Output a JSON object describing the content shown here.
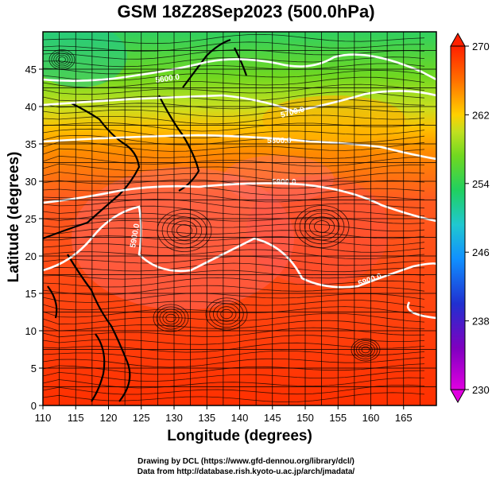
{
  "title": "GSM 18Z28Sep2023 (500.0hPa)",
  "axes": {
    "xlabel": "Longitude (degrees)",
    "ylabel": "Latitude  (degrees)",
    "xlim": [
      110,
      170
    ],
    "ylim": [
      0,
      50
    ],
    "xticks": [
      "110",
      "115",
      "120",
      "125",
      "130",
      "135",
      "140",
      "145",
      "150",
      "155",
      "160",
      "165"
    ],
    "yticks": [
      "0",
      "5",
      "10",
      "15",
      "20",
      "25",
      "30",
      "35",
      "40",
      "45"
    ]
  },
  "colorbar": {
    "ticks": [
      "230",
      "238",
      "246",
      "254",
      "262",
      "270"
    ],
    "range": [
      230,
      270
    ],
    "colors": [
      "#e000e0",
      "#8000c0",
      "#2030d0",
      "#1090ff",
      "#20c8d0",
      "#20d060",
      "#70d820",
      "#c0e020",
      "#ffd000",
      "#ff7000",
      "#ff2000"
    ]
  },
  "contour_labels": [
    "5600.0",
    "5700.0",
    "5800.0",
    "5900.0",
    "5900.0",
    "5900.0"
  ],
  "credits": [
    "Drawing by DCL (https://www.gfd-dennou.org/library/dcl/)",
    "Data from http://database.rish.kyoto-u.ac.jp/arch/jmadata/"
  ]
}
